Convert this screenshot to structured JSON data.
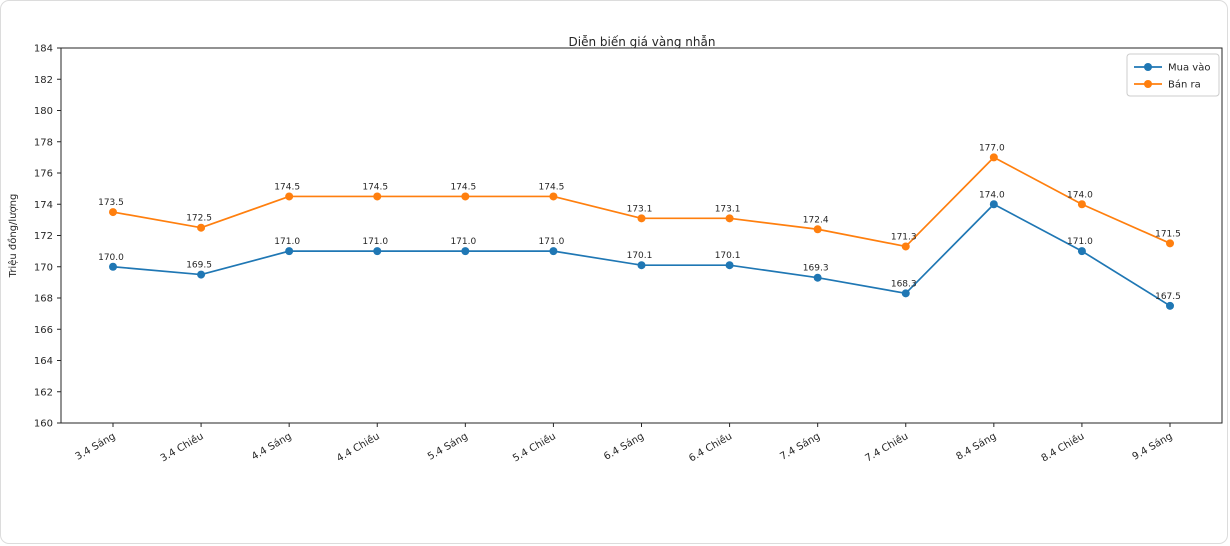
{
  "chart_data": {
    "type": "line",
    "title": "Diễn biến giá vàng nhẫn",
    "xlabel": "",
    "ylabel": "Triệu đồng/lượng",
    "categories": [
      "3.4 Sáng",
      "3.4 Chiều",
      "4.4 Sáng",
      "4.4 Chiều",
      "5.4 Sáng",
      "5.4 Chiều",
      "6.4 Sáng",
      "6.4 Chiều",
      "7.4 Sáng",
      "7.4 Chiều",
      "8.4 Sáng",
      "8.4 Chiều",
      "9.4 Sáng"
    ],
    "series": [
      {
        "name": "Mua vào",
        "color": "#1f77b4",
        "values": [
          170.0,
          169.5,
          171.0,
          171.0,
          171.0,
          171.0,
          170.1,
          170.1,
          169.3,
          168.3,
          174.0,
          171.0,
          167.5
        ]
      },
      {
        "name": "Bán ra",
        "color": "#ff7f0e",
        "values": [
          173.5,
          172.5,
          174.5,
          174.5,
          174.5,
          174.5,
          173.1,
          173.1,
          172.4,
          171.3,
          177.0,
          174.0,
          171.5
        ]
      }
    ],
    "ylim": [
      160,
      184
    ],
    "ytick_step": 2,
    "grid": false,
    "point_labels": true,
    "legend_position": "top-right",
    "axis_color": "#262626",
    "text_color": "#262626",
    "legend_border_color": "#cccccc"
  }
}
